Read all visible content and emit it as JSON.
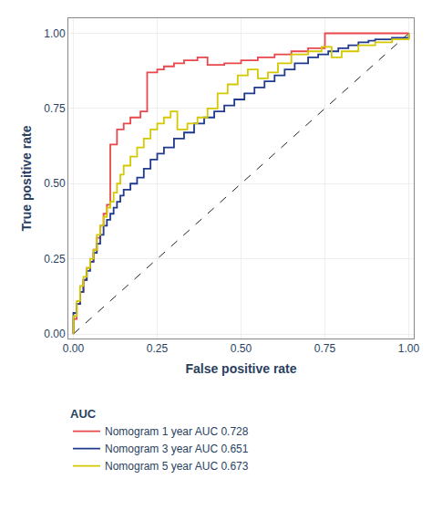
{
  "chart_data": {
    "type": "line",
    "xlabel": "False positive rate",
    "ylabel": "True positive rate",
    "xlim": [
      -0.015,
      1.015
    ],
    "ylim": [
      -0.015,
      1.05
    ],
    "xticks": [
      {
        "value": 0.0,
        "label": "0.00"
      },
      0.25,
      {
        "value": 0.5,
        "label": "0.50"
      },
      0.75,
      {
        "value": 1.0,
        "label": "1.00"
      }
    ],
    "yticks": [
      {
        "value": 0.0,
        "label": "0.00"
      },
      0.25,
      {
        "value": 0.5,
        "label": "0.50"
      },
      0.75,
      {
        "value": 1.0,
        "label": "1.00"
      }
    ],
    "grid": true,
    "legend": "bottom",
    "legend_title": "AUC",
    "series": [
      {
        "color": "#222222",
        "line_style": "dashed",
        "x": [
          0,
          1
        ],
        "values": [
          0,
          1
        ]
      },
      {
        "name": "Nomogram 1 year AUC 0.728",
        "color": "#e8474c",
        "x": [
          0.0,
          0.0,
          0.01,
          0.01,
          0.02,
          0.02,
          0.03,
          0.03,
          0.04,
          0.04,
          0.05,
          0.05,
          0.06,
          0.06,
          0.07,
          0.07,
          0.08,
          0.08,
          0.09,
          0.09,
          0.1,
          0.1,
          0.11,
          0.11,
          0.13,
          0.13,
          0.15,
          0.15,
          0.17,
          0.17,
          0.2,
          0.2,
          0.22,
          0.22,
          0.25,
          0.25,
          0.27,
          0.27,
          0.3,
          0.3,
          0.33,
          0.33,
          0.37,
          0.37,
          0.4,
          0.4,
          0.45,
          0.45,
          0.5,
          0.5,
          0.55,
          0.55,
          0.6,
          0.6,
          0.65,
          0.65,
          0.7,
          0.7,
          0.75,
          0.75,
          0.8,
          0.8,
          1.0,
          1.0
        ],
        "values": [
          0.0,
          0.05,
          0.05,
          0.1,
          0.1,
          0.14,
          0.14,
          0.18,
          0.18,
          0.22,
          0.22,
          0.24,
          0.24,
          0.28,
          0.28,
          0.32,
          0.32,
          0.36,
          0.36,
          0.4,
          0.4,
          0.43,
          0.43,
          0.63,
          0.63,
          0.68,
          0.68,
          0.7,
          0.7,
          0.72,
          0.72,
          0.74,
          0.74,
          0.87,
          0.87,
          0.88,
          0.88,
          0.89,
          0.89,
          0.9,
          0.9,
          0.91,
          0.91,
          0.92,
          0.92,
          0.895,
          0.895,
          0.9,
          0.9,
          0.91,
          0.91,
          0.92,
          0.92,
          0.93,
          0.93,
          0.94,
          0.94,
          0.95,
          0.95,
          1.0,
          1.0,
          1.0,
          1.0,
          1.0
        ]
      },
      {
        "name": "Nomogram 3 year AUC 0.651",
        "color": "#1f3a8f",
        "x": [
          0.0,
          0.0,
          0.01,
          0.01,
          0.02,
          0.02,
          0.03,
          0.03,
          0.04,
          0.04,
          0.05,
          0.05,
          0.06,
          0.06,
          0.07,
          0.07,
          0.08,
          0.08,
          0.09,
          0.09,
          0.1,
          0.1,
          0.11,
          0.11,
          0.12,
          0.12,
          0.13,
          0.13,
          0.14,
          0.14,
          0.15,
          0.15,
          0.17,
          0.17,
          0.19,
          0.19,
          0.21,
          0.21,
          0.23,
          0.23,
          0.25,
          0.25,
          0.27,
          0.27,
          0.3,
          0.3,
          0.33,
          0.33,
          0.36,
          0.36,
          0.39,
          0.39,
          0.42,
          0.42,
          0.45,
          0.45,
          0.48,
          0.48,
          0.51,
          0.51,
          0.54,
          0.54,
          0.57,
          0.57,
          0.6,
          0.6,
          0.63,
          0.63,
          0.66,
          0.66,
          0.7,
          0.7,
          0.73,
          0.73,
          0.76,
          0.76,
          0.79,
          0.79,
          0.82,
          0.82,
          0.85,
          0.85,
          0.88,
          0.88,
          0.9,
          0.9,
          0.95,
          0.95,
          1.0,
          1.0
        ],
        "values": [
          0.0,
          0.07,
          0.07,
          0.1,
          0.1,
          0.14,
          0.14,
          0.18,
          0.18,
          0.21,
          0.21,
          0.24,
          0.24,
          0.27,
          0.27,
          0.3,
          0.3,
          0.33,
          0.33,
          0.36,
          0.36,
          0.38,
          0.38,
          0.4,
          0.4,
          0.42,
          0.42,
          0.44,
          0.44,
          0.46,
          0.46,
          0.48,
          0.48,
          0.5,
          0.5,
          0.52,
          0.52,
          0.55,
          0.55,
          0.58,
          0.58,
          0.6,
          0.6,
          0.62,
          0.62,
          0.65,
          0.65,
          0.67,
          0.67,
          0.7,
          0.7,
          0.72,
          0.72,
          0.74,
          0.74,
          0.76,
          0.76,
          0.78,
          0.78,
          0.8,
          0.8,
          0.82,
          0.82,
          0.84,
          0.84,
          0.86,
          0.86,
          0.88,
          0.88,
          0.9,
          0.9,
          0.92,
          0.92,
          0.93,
          0.93,
          0.94,
          0.94,
          0.95,
          0.95,
          0.96,
          0.96,
          0.97,
          0.97,
          0.975,
          0.975,
          0.98,
          0.98,
          0.985,
          0.985,
          1.0
        ]
      },
      {
        "name": "Nomogram 5 year AUC 0.673",
        "color": "#d4c800",
        "x": [
          0.0,
          0.0,
          0.01,
          0.01,
          0.02,
          0.02,
          0.03,
          0.03,
          0.04,
          0.04,
          0.05,
          0.05,
          0.06,
          0.06,
          0.07,
          0.07,
          0.08,
          0.08,
          0.09,
          0.09,
          0.1,
          0.1,
          0.11,
          0.11,
          0.12,
          0.12,
          0.13,
          0.13,
          0.14,
          0.14,
          0.15,
          0.15,
          0.17,
          0.17,
          0.19,
          0.19,
          0.21,
          0.21,
          0.23,
          0.23,
          0.25,
          0.25,
          0.27,
          0.27,
          0.29,
          0.29,
          0.31,
          0.31,
          0.34,
          0.34,
          0.37,
          0.37,
          0.4,
          0.4,
          0.43,
          0.43,
          0.46,
          0.46,
          0.49,
          0.49,
          0.52,
          0.52,
          0.55,
          0.55,
          0.58,
          0.58,
          0.61,
          0.61,
          0.65,
          0.65,
          0.7,
          0.7,
          0.74,
          0.74,
          0.77,
          0.77,
          0.8,
          0.8,
          0.85,
          0.85,
          0.9,
          0.9,
          0.95,
          0.95,
          1.0,
          1.0
        ],
        "values": [
          0.0,
          0.06,
          0.06,
          0.11,
          0.11,
          0.16,
          0.16,
          0.19,
          0.19,
          0.22,
          0.22,
          0.25,
          0.25,
          0.28,
          0.28,
          0.33,
          0.33,
          0.36,
          0.36,
          0.39,
          0.39,
          0.42,
          0.42,
          0.44,
          0.44,
          0.47,
          0.47,
          0.5,
          0.5,
          0.53,
          0.53,
          0.56,
          0.56,
          0.59,
          0.59,
          0.62,
          0.62,
          0.65,
          0.65,
          0.68,
          0.68,
          0.7,
          0.7,
          0.72,
          0.72,
          0.74,
          0.74,
          0.68,
          0.68,
          0.7,
          0.7,
          0.72,
          0.72,
          0.75,
          0.75,
          0.8,
          0.8,
          0.83,
          0.83,
          0.86,
          0.86,
          0.88,
          0.88,
          0.85,
          0.85,
          0.87,
          0.87,
          0.9,
          0.9,
          0.93,
          0.93,
          0.94,
          0.94,
          0.955,
          0.955,
          0.92,
          0.92,
          0.94,
          0.94,
          0.96,
          0.96,
          0.97,
          0.97,
          0.98,
          0.98,
          1.0
        ]
      }
    ]
  }
}
